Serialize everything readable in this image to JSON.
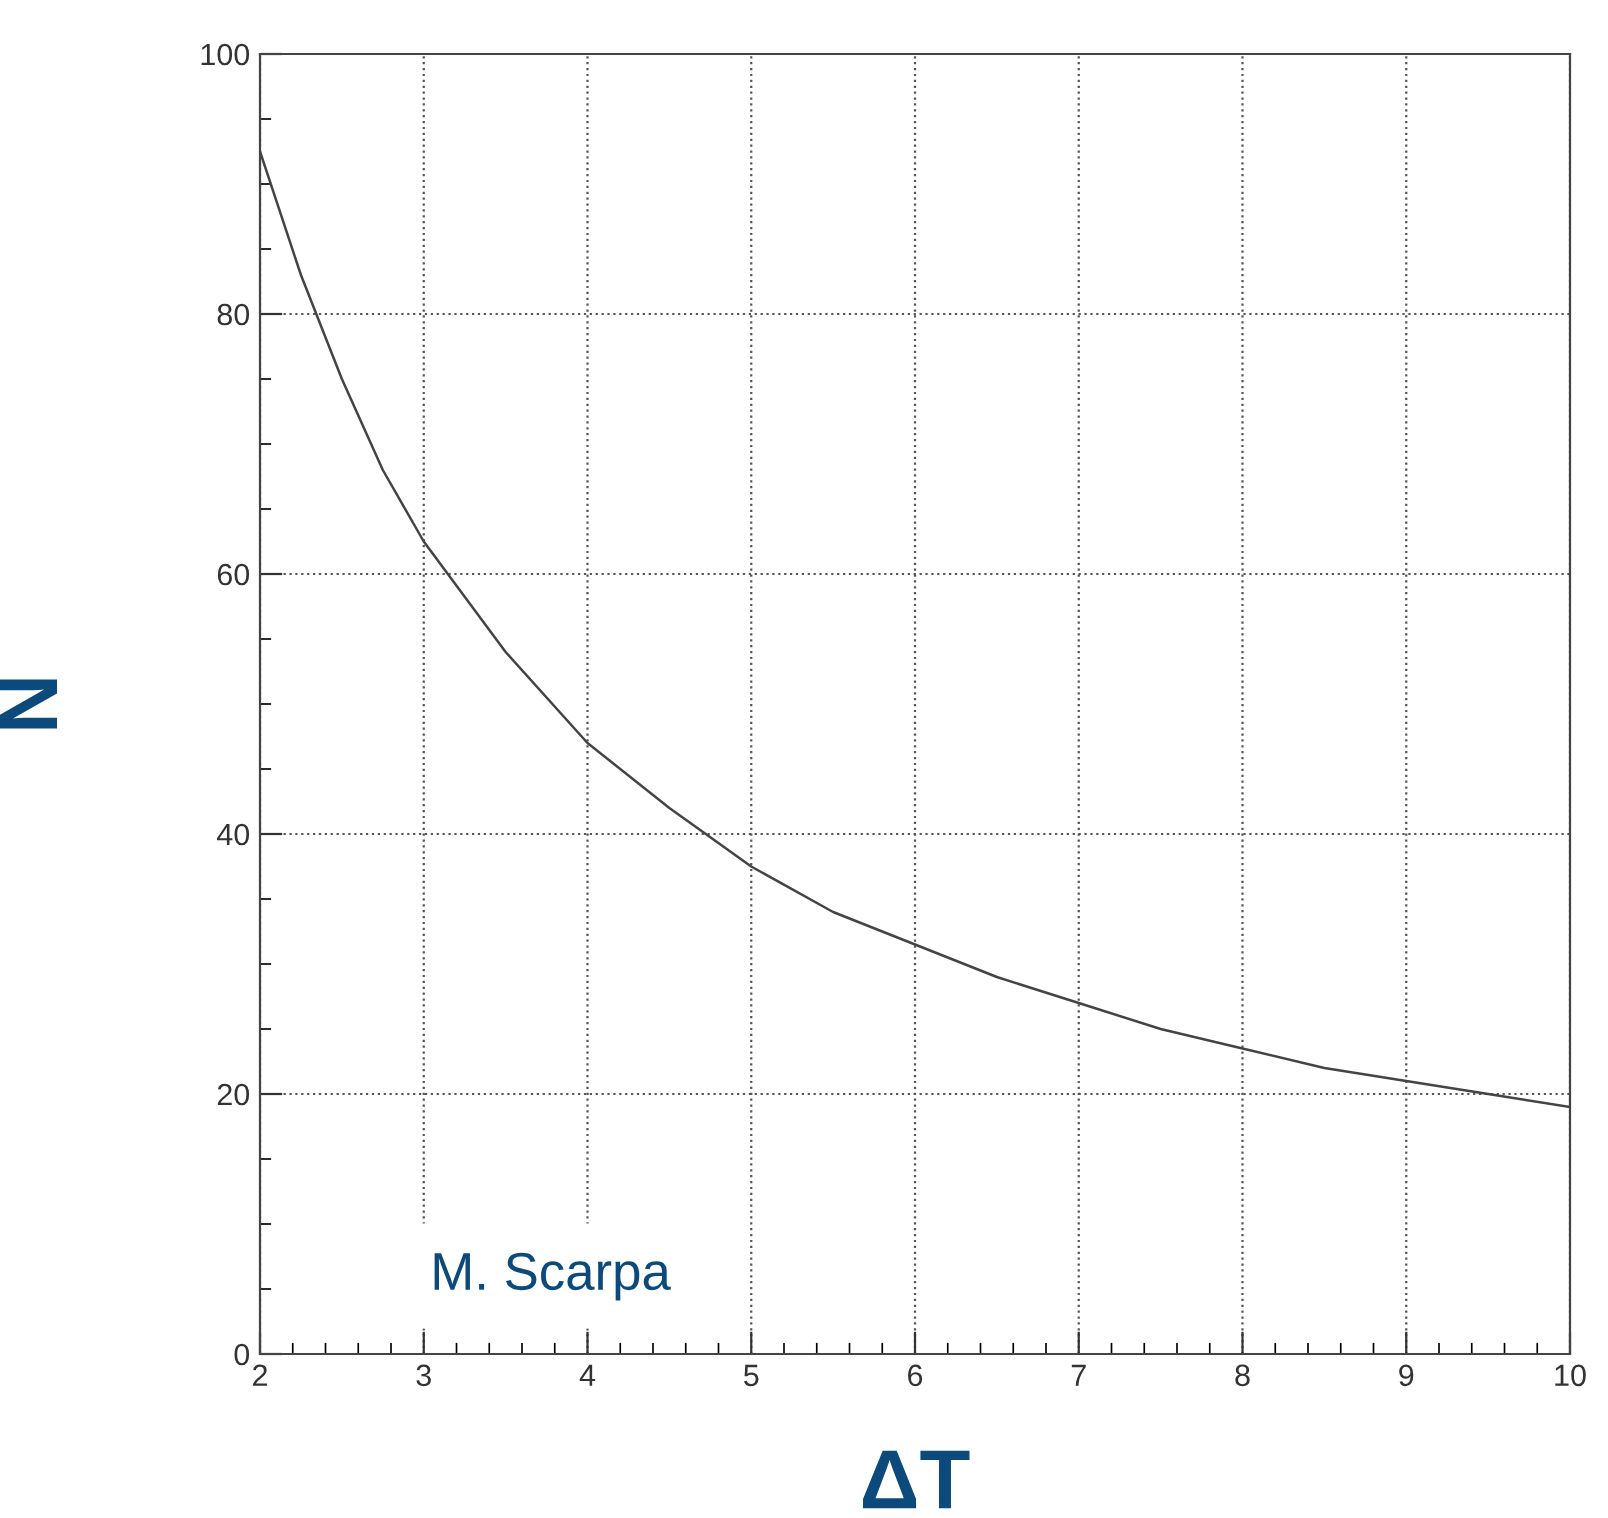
{
  "chart_data": {
    "type": "line",
    "xlabel": "ΔT",
    "ylabel": "N",
    "x": [
      2.0,
      2.25,
      2.5,
      2.75,
      3.0,
      3.5,
      4.0,
      4.5,
      5.0,
      5.5,
      6.0,
      6.5,
      7.0,
      7.5,
      8.0,
      8.5,
      9.0,
      9.5,
      10.0
    ],
    "series": [
      {
        "color": "#444444",
        "values": [
          92.5,
          83,
          75,
          68,
          62.5,
          54,
          47,
          42,
          37.5,
          34,
          31.5,
          29,
          27,
          25,
          23.5,
          22,
          21,
          20,
          19
        ]
      }
    ],
    "xlim": [
      2,
      10
    ],
    "xticks": [
      2,
      3,
      4,
      5,
      6,
      7,
      8,
      9,
      10
    ],
    "ylim": [
      0,
      100
    ],
    "yticks": [
      0,
      20,
      40,
      60,
      80,
      100
    ],
    "grid": true,
    "marker": "none",
    "line_style": "solid",
    "annotations": [
      "M. Scarpa"
    ]
  }
}
